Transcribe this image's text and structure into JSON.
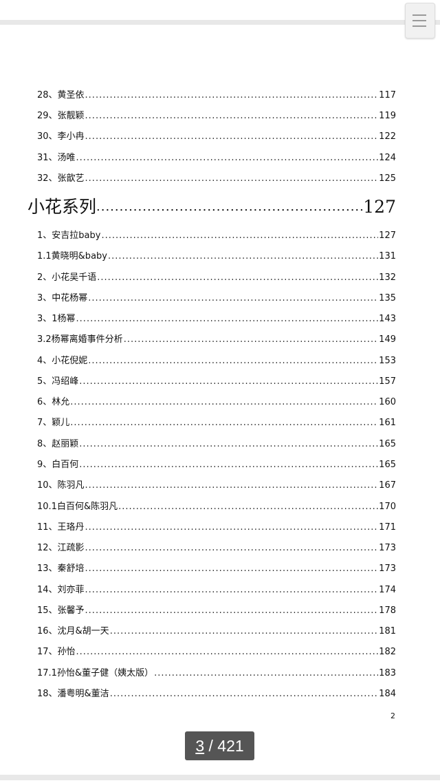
{
  "toc_top": [
    {
      "title": "28、黄圣依",
      "page": "117"
    },
    {
      "title": "29、张靓颖",
      "page": "119"
    },
    {
      "title": "30、李小冉",
      "page": "122"
    },
    {
      "title": "31、汤唯",
      "page": "124"
    },
    {
      "title": "32、张歆艺",
      "page": "125"
    }
  ],
  "section": {
    "title": "小花系列",
    "page": "127"
  },
  "toc_section": [
    {
      "title": "1、安吉拉baby",
      "page": "127"
    },
    {
      "title": "1.1黄晓明&baby",
      "page": "131"
    },
    {
      "title": "2、小花吴千语",
      "page": "132"
    },
    {
      "title": "3、中花杨幂",
      "page": "135"
    },
    {
      "title": "3、1杨幂",
      "page": "143"
    },
    {
      "title": "3.2杨幂离婚事件分析",
      "page": "149"
    },
    {
      "title": "4、小花倪妮",
      "page": "153"
    },
    {
      "title": "5、冯绍峰",
      "page": "157"
    },
    {
      "title": "6、林允",
      "page": "160"
    },
    {
      "title": "7、颖儿",
      "page": "161"
    },
    {
      "title": "8、赵丽颖",
      "page": "165"
    },
    {
      "title": "9、白百何",
      "page": "165"
    },
    {
      "title": "10、陈羽凡",
      "page": "167"
    },
    {
      "title": "10.1白百何&陈羽凡",
      "page": "170"
    },
    {
      "title": "11、王珞丹",
      "page": "171"
    },
    {
      "title": "12、江疏影",
      "page": "173"
    },
    {
      "title": "13、秦舒培",
      "page": "173"
    },
    {
      "title": "14、刘亦菲",
      "page": "174"
    },
    {
      "title": "15、张馨予",
      "page": "178"
    },
    {
      "title": "16、沈月&胡一天",
      "page": "181"
    },
    {
      "title": "17、孙怡",
      "page": "182"
    },
    {
      "title": "17.1孙怡&董子健（姨太版）",
      "page": "183"
    },
    {
      "title": "18、潘粤明&董洁",
      "page": "184"
    }
  ],
  "footer_page_number": "2",
  "pager": {
    "current": "3",
    "separator": " / ",
    "total": "421"
  },
  "icons": {
    "menu": "hamburger-menu-icon"
  }
}
